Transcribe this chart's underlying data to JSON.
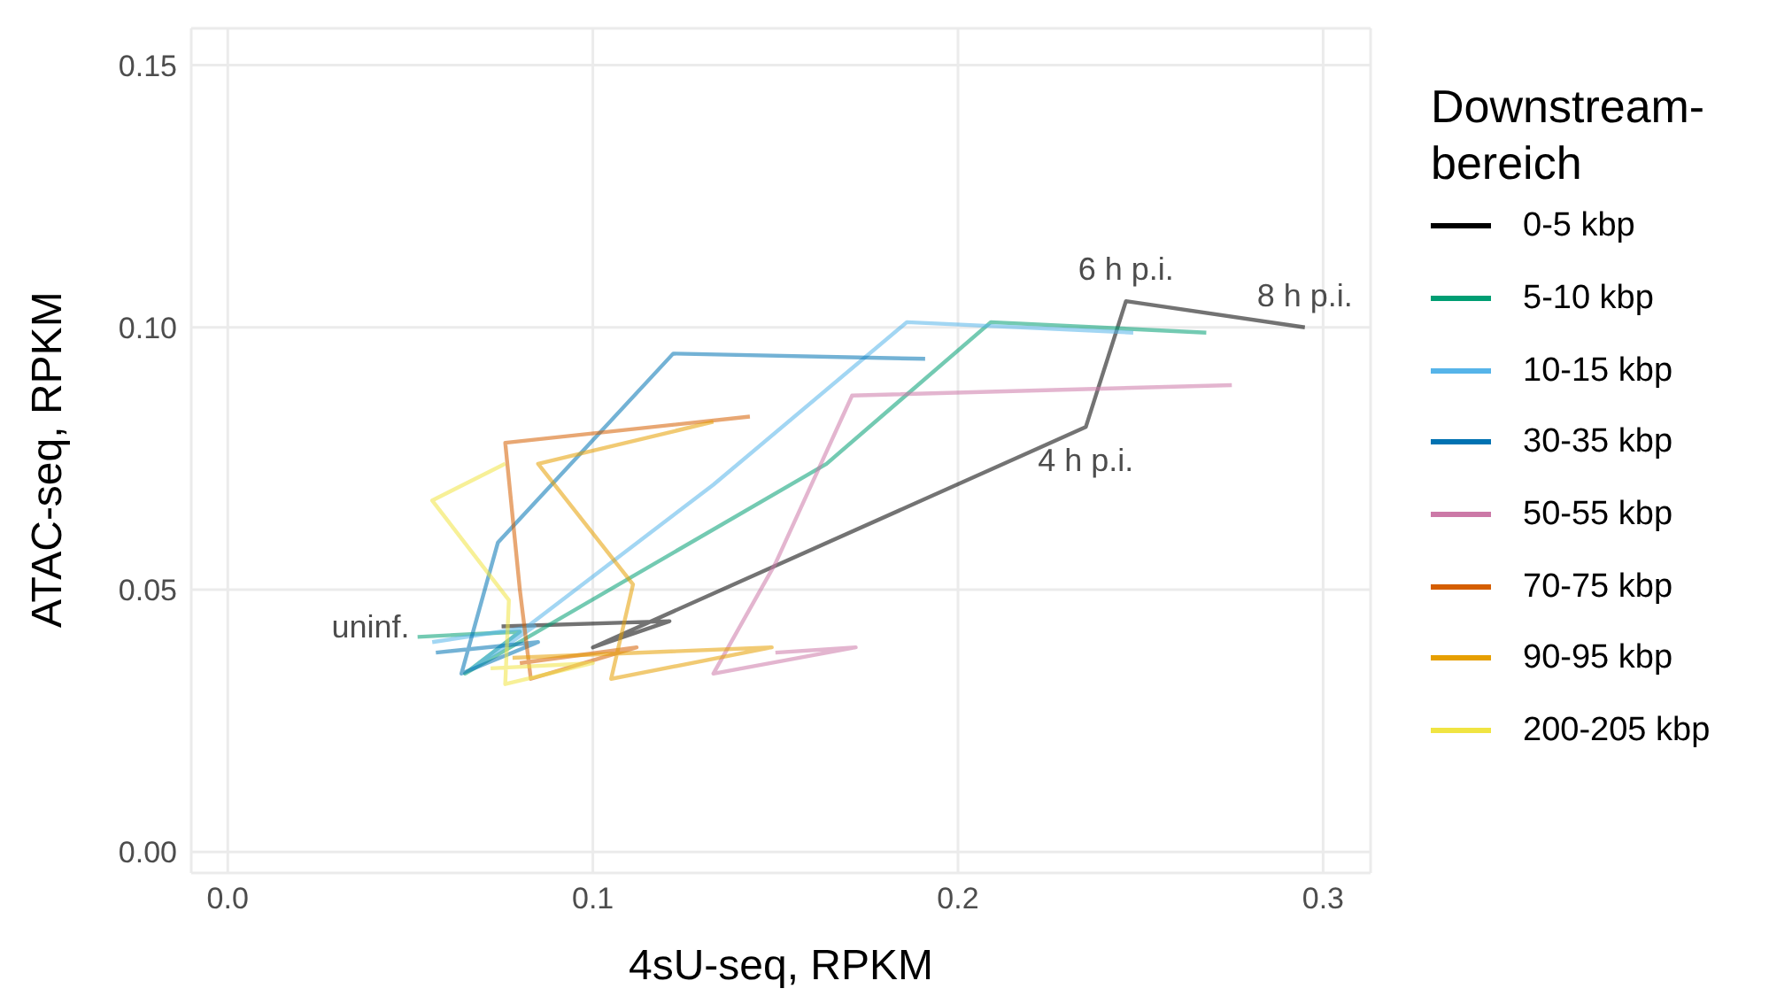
{
  "chart_data": {
    "type": "line",
    "xlabel": "4sU-seq, RPKM",
    "ylabel": "ATAC-seq, RPKM",
    "legend_title": "Downstream-bereich",
    "legend": "right",
    "grid": true,
    "marker": "none",
    "line_style": "solid",
    "xlim": [
      -0.01,
      0.313
    ],
    "ylim": [
      -0.004,
      0.157
    ],
    "xticks": [
      {
        "value": 0,
        "label": "0.0"
      },
      {
        "value": 0.1,
        "label": "0.1"
      },
      {
        "value": 0.2,
        "label": "0.2"
      },
      {
        "value": 0.3,
        "label": "0.3"
      }
    ],
    "yticks": [
      {
        "value": 0,
        "label": "0.00"
      },
      {
        "value": 0.05,
        "label": "0.05"
      },
      {
        "value": 0.1,
        "label": "0.10"
      },
      {
        "value": 0.15,
        "label": "0.15"
      }
    ],
    "series": [
      {
        "name": "0-5 kbp",
        "color": "#000000",
        "x": [
          0.075,
          0.121,
          0.1,
          0.235,
          0.246,
          0.295
        ],
        "values": [
          0.043,
          0.044,
          0.039,
          0.081,
          0.105,
          0.1
        ]
      },
      {
        "name": "5-10 kbp",
        "color": "#009e73",
        "x": [
          0.052,
          0.08,
          0.065,
          0.164,
          0.209,
          0.268
        ],
        "values": [
          0.041,
          0.042,
          0.034,
          0.074,
          0.101,
          0.099
        ]
      },
      {
        "name": "10-15 kbp",
        "color": "#56b4e9",
        "x": [
          0.056,
          0.084,
          0.067,
          0.133,
          0.186,
          0.248
        ],
        "values": [
          0.04,
          0.043,
          0.035,
          0.07,
          0.101,
          0.099
        ]
      },
      {
        "name": "30-35 kbp",
        "color": "#0072b2",
        "x": [
          0.057,
          0.085,
          0.064,
          0.074,
          0.122,
          0.191
        ],
        "values": [
          0.038,
          0.04,
          0.034,
          0.059,
          0.095,
          0.094
        ]
      },
      {
        "name": "50-55 kbp",
        "color": "#cc79a7",
        "x": [
          0.15,
          0.172,
          0.133,
          0.15,
          0.171,
          0.275
        ],
        "values": [
          0.038,
          0.039,
          0.034,
          0.055,
          0.087,
          0.089
        ]
      },
      {
        "name": "70-75 kbp",
        "color": "#d55e00",
        "x": [
          0.08,
          0.112,
          0.083,
          0.08,
          0.076,
          0.143
        ],
        "values": [
          0.036,
          0.039,
          0.033,
          0.05,
          0.078,
          0.083
        ]
      },
      {
        "name": "90-95 kbp",
        "color": "#e69f00",
        "x": [
          0.078,
          0.149,
          0.105,
          0.111,
          0.085,
          0.133
        ],
        "values": [
          0.037,
          0.039,
          0.033,
          0.051,
          0.074,
          0.082
        ]
      },
      {
        "name": "200-205 kbp",
        "color": "#f0e442",
        "x": [
          0.072,
          0.1,
          0.076,
          0.077,
          0.056,
          0.076
        ],
        "values": [
          0.035,
          0.036,
          0.032,
          0.048,
          0.067,
          0.074
        ]
      }
    ],
    "annotations": [
      {
        "text": "uninf.",
        "x": 0.075,
        "y": 0.043
      },
      {
        "text": "4 h p.i.",
        "x": 0.235,
        "y": 0.081
      },
      {
        "text": "6 h p.i.",
        "x": 0.246,
        "y": 0.105
      },
      {
        "text": "8 h p.i.",
        "x": 0.295,
        "y": 0.1
      }
    ]
  }
}
